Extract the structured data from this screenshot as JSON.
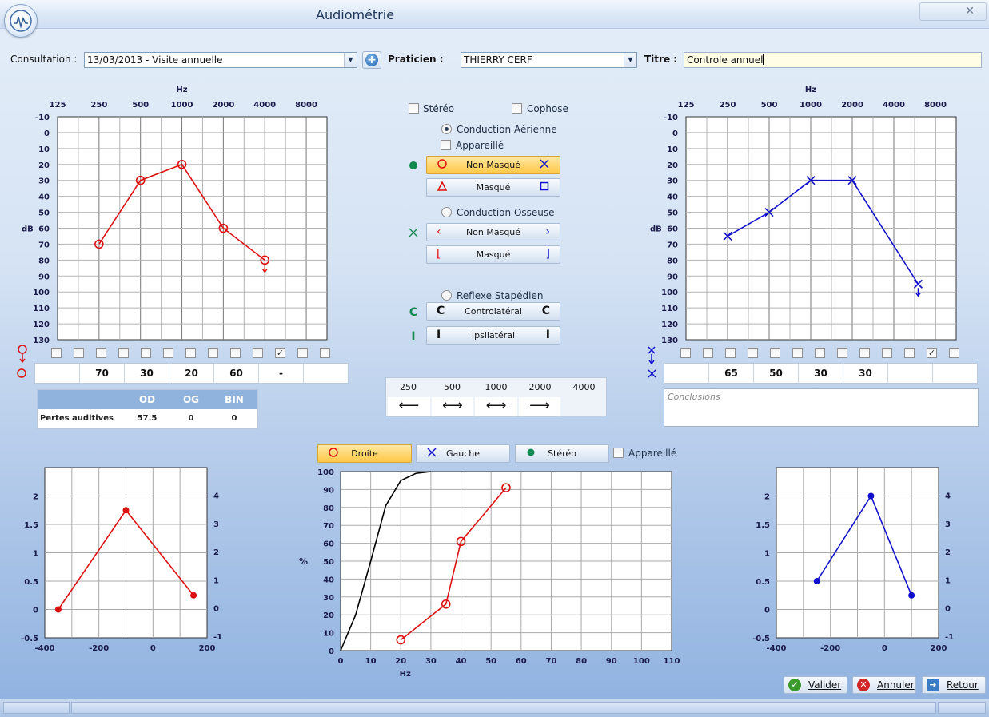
{
  "window": {
    "title": "Audiométrie",
    "close_glyph": "✕",
    "app_icon": "audiometry-logo-icon"
  },
  "header": {
    "consultation_label": "Consultation :",
    "consultation_value": "13/03/2013 - Visite annuelle",
    "praticien_label": "Praticien :",
    "praticien_value": "THIERRY CERF",
    "titre_label": "Titre :",
    "titre_value": "Controle annuel",
    "add_icon": "plus-circle-icon"
  },
  "options": {
    "stereo": "Stéréo",
    "cophose": "Cophose",
    "conduction_aerienne": "Conduction Aérienne",
    "appareille": "Appareillé",
    "non_masque": "Non Masqué",
    "masque": "Masqué",
    "conduction_osseuse": "Conduction Osseuse",
    "reflexe_stapedien": "Reflexe Stapédien",
    "controlateral": "Controlatéral",
    "ipsilateral": "Ipsilatéral"
  },
  "threshold_values": {
    "right": [
      "",
      "70",
      "30",
      "20",
      "60",
      "-",
      ""
    ],
    "left": [
      "",
      "65",
      "50",
      "30",
      "30",
      "",
      ""
    ]
  },
  "checkbox_rows": {
    "right_checked_index": 10,
    "left_checked_index": 11,
    "count": 13
  },
  "losses": {
    "headers": [
      "",
      "OD",
      "OG",
      "BIN"
    ],
    "row_label": "Pertes auditives",
    "values": [
      "57.5",
      "0",
      "0"
    ]
  },
  "frequency_transfer": {
    "labels": [
      "250",
      "500",
      "1000",
      "2000",
      "4000"
    ],
    "arrows": [
      "⟵",
      "⟷",
      "⟷",
      "⟶",
      ""
    ]
  },
  "conclusions_placeholder": "Conclusions",
  "vocal_tabs": {
    "droite": "Droite",
    "gauche": "Gauche",
    "stereo": "Stéréo",
    "appareille": "Appareillé"
  },
  "footer": {
    "valider": "Valider",
    "annuler": "Annuler",
    "retour": "Retour",
    "valider_icon": "check-circle-icon",
    "annuler_icon": "cancel-circle-icon",
    "retour_icon": "exit-door-icon"
  },
  "chart_data": [
    {
      "id": "audiogram-right",
      "type": "line",
      "xlabel": "Hz",
      "ylabel": "dB",
      "categories": [
        "125",
        "250",
        "500",
        "1000",
        "2000",
        "4000",
        "8000"
      ],
      "y_ticks": [
        -10,
        0,
        10,
        20,
        30,
        40,
        50,
        60,
        70,
        80,
        90,
        100,
        110,
        120,
        130
      ],
      "ylim": [
        -10,
        130
      ],
      "y_inverted": true,
      "grid": true,
      "color": "#dd1111",
      "marker": "circle",
      "series": [
        {
          "x": [
            250,
            500,
            1000,
            2000,
            4000
          ],
          "y": [
            70,
            30,
            20,
            60,
            80
          ],
          "down_arrow_last": true
        }
      ]
    },
    {
      "id": "audiogram-left",
      "type": "line",
      "xlabel": "Hz",
      "ylabel": "dB",
      "categories": [
        "125",
        "250",
        "500",
        "1000",
        "2000",
        "4000",
        "8000"
      ],
      "y_ticks": [
        -10,
        0,
        10,
        20,
        30,
        40,
        50,
        60,
        70,
        80,
        90,
        100,
        110,
        120,
        130
      ],
      "ylim": [
        -10,
        130
      ],
      "y_inverted": true,
      "grid": true,
      "color": "#1111cc",
      "marker": "cross",
      "series": [
        {
          "x": [
            250,
            500,
            1000,
            2000,
            6000
          ],
          "y": [
            65,
            50,
            30,
            30,
            95
          ],
          "down_arrow_last": true
        }
      ]
    },
    {
      "id": "small-chart-left",
      "type": "line",
      "x_ticks": [
        -400,
        -200,
        0,
        200
      ],
      "xlim": [
        -400,
        200
      ],
      "y_ticks": [
        -0.5,
        0,
        0.5,
        1,
        1.5,
        2
      ],
      "ylim": [
        -0.5,
        2.5
      ],
      "y2_ticks": [
        -1,
        0,
        1,
        2,
        3,
        4
      ],
      "grid": true,
      "color": "#dd1111",
      "series": [
        {
          "x": [
            -350,
            -100,
            150
          ],
          "y": [
            0,
            1.75,
            0.25
          ]
        }
      ]
    },
    {
      "id": "vocal-chart",
      "type": "line",
      "xlabel": "Hz",
      "ylabel": "%",
      "x_ticks": [
        0,
        10,
        20,
        30,
        40,
        50,
        60,
        70,
        80,
        90,
        100,
        110
      ],
      "xlim": [
        0,
        110
      ],
      "y_ticks": [
        0,
        10,
        20,
        30,
        40,
        50,
        60,
        70,
        80,
        90,
        100
      ],
      "ylim": [
        0,
        100
      ],
      "grid": true,
      "series": [
        {
          "color": "#000000",
          "marker": "none",
          "x": [
            0,
            5,
            10,
            15,
            20,
            25,
            30
          ],
          "y": [
            0,
            20,
            50,
            81,
            95,
            99,
            100
          ]
        },
        {
          "color": "#dd1111",
          "marker": "circle",
          "x": [
            20,
            35,
            40,
            55
          ],
          "y": [
            6,
            26,
            61,
            91
          ]
        }
      ]
    },
    {
      "id": "small-chart-right",
      "type": "line",
      "x_ticks": [
        -400,
        -200,
        0,
        200
      ],
      "xlim": [
        -400,
        200
      ],
      "y_ticks": [
        -0.5,
        0,
        0.5,
        1,
        1.5,
        2
      ],
      "ylim": [
        -0.5,
        2.5
      ],
      "y2_ticks": [
        -1,
        0,
        1,
        2,
        3,
        4
      ],
      "grid": true,
      "color": "#1111cc",
      "series": [
        {
          "x": [
            -250,
            -50,
            100
          ],
          "y": [
            0.5,
            2,
            0.25
          ]
        }
      ]
    }
  ]
}
